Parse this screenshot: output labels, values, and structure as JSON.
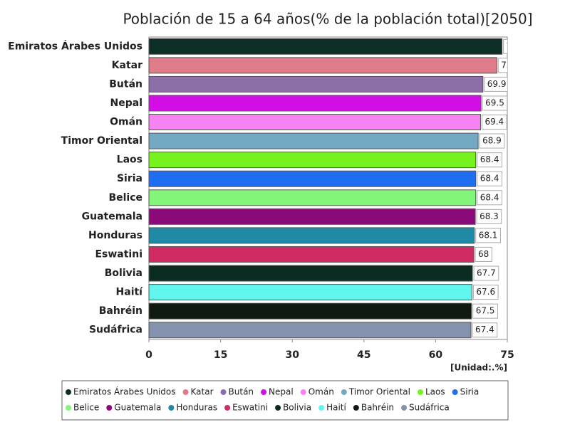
{
  "chart_data": {
    "type": "bar",
    "orientation": "horizontal",
    "title": "Población de 15 a 64 años(% de la población total)[2050]",
    "unit_label": "[Unidad:.%]",
    "categories": [
      "Emiratos Árabes Unidos",
      "Katar",
      "Bután",
      "Nepal",
      "Omán",
      "Timor Oriental",
      "Laos",
      "Siria",
      "Belice",
      "Guatemala",
      "Honduras",
      "Eswatini",
      "Bolivia",
      "Haití",
      "Bahréin",
      "Sudáfrica"
    ],
    "values": [
      73.9,
      72.8,
      69.9,
      69.5,
      69.4,
      68.9,
      68.4,
      68.4,
      68.4,
      68.3,
      68.1,
      68,
      67.7,
      67.6,
      67.5,
      67.4
    ],
    "colors": [
      "#0d2e26",
      "#e07b8a",
      "#8c6fa8",
      "#d20de6",
      "#f783f2",
      "#74a9c3",
      "#76f31e",
      "#1f6ef2",
      "#82f57a",
      "#8b0a7a",
      "#2089a6",
      "#d12b63",
      "#0b2c22",
      "#62f5ee",
      "#111a10",
      "#8592ad"
    ],
    "xlim": [
      0,
      75
    ],
    "xticks": [
      0,
      15,
      30,
      45,
      60,
      75
    ],
    "legend": "bottom"
  }
}
